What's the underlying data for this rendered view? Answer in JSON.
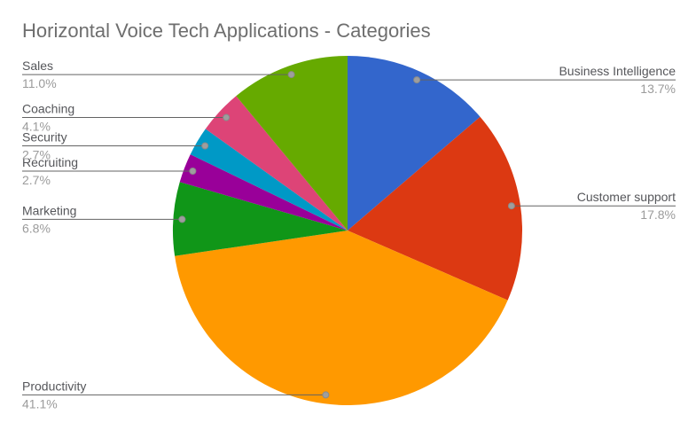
{
  "chart_data": {
    "type": "pie",
    "title": "Horizontal Voice Tech Applications - Categories",
    "start_angle_deg": 0,
    "direction": "clockwise",
    "legend_position": "outside-callout-labels",
    "title_color": "#6e6e6e",
    "label_color": "#55565a",
    "value_color": "#9b9b9b",
    "slices": [
      {
        "label": "Business Intelligence",
        "value": 13.7,
        "display_value": "13.7%",
        "color": "#3366CC"
      },
      {
        "label": "Customer support",
        "value": 17.8,
        "display_value": "17.8%",
        "color": "#DC3912"
      },
      {
        "label": "Productivity",
        "value": 41.1,
        "display_value": "41.1%",
        "color": "#FF9900"
      },
      {
        "label": "Marketing",
        "value": 6.8,
        "display_value": "6.8%",
        "color": "#109618"
      },
      {
        "label": "Recruiting",
        "value": 2.7,
        "display_value": "2.7%",
        "color": "#990099"
      },
      {
        "label": "Security",
        "value": 2.7,
        "display_value": "2.7%",
        "color": "#0099C6"
      },
      {
        "label": "Coaching",
        "value": 4.1,
        "display_value": "4.1%",
        "color": "#DD4477"
      },
      {
        "label": "Sales",
        "value": 11.0,
        "display_value": "11.0%",
        "color": "#66AA00"
      }
    ]
  }
}
